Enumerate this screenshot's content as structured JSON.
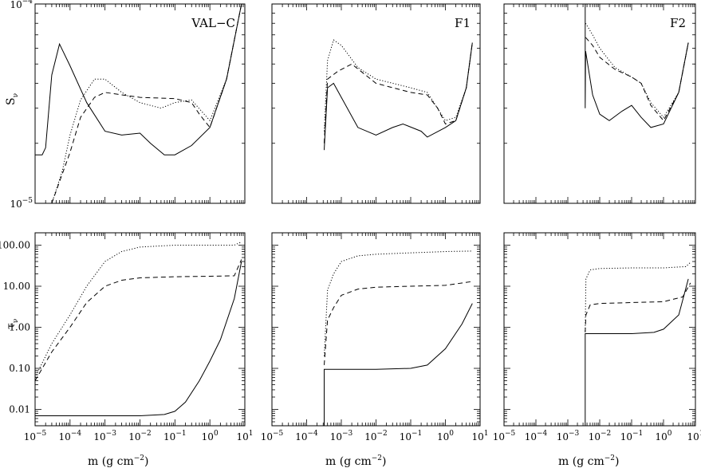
{
  "figure": {
    "xlabel_text": "m  (g  cm",
    "xlabel_exp": "−2",
    "xlabel_close": ")"
  },
  "chart_data": [
    {
      "type": "line",
      "panel": "VAL-C",
      "quantity": "S_nu",
      "ylabel": "S",
      "ylabel_sub": "ν",
      "xscale": "log",
      "yscale": "log",
      "xlim": [
        1e-05,
        10
      ],
      "ylim": [
        1e-05,
        0.0001
      ],
      "xtick_labels": [],
      "ytick_labels": [
        "10^-4",
        "10^-5"
      ],
      "label": "VAL−C",
      "series": [
        {
          "style": "solid",
          "points": [
            [
              1e-05,
              1.75e-05
            ],
            [
              1.6e-05,
              1.75e-05
            ],
            [
              2e-05,
              1.9e-05
            ],
            [
              3e-05,
              4.4e-05
            ],
            [
              5e-05,
              6.3e-05
            ],
            [
              0.0001,
              4.9e-05
            ],
            [
              0.0003,
              3.2e-05
            ],
            [
              0.001,
              2.3e-05
            ],
            [
              0.003,
              2.2e-05
            ],
            [
              0.01,
              2.25e-05
            ],
            [
              0.02,
              2e-05
            ],
            [
              0.05,
              1.75e-05
            ],
            [
              0.1,
              1.75e-05
            ],
            [
              0.3,
              1.95e-05
            ],
            [
              1,
              2.4e-05
            ],
            [
              3,
              4.2e-05
            ],
            [
              8,
              0.0001
            ]
          ]
        },
        {
          "style": "dotted",
          "points": [
            [
              3e-05,
              1e-05
            ],
            [
              6e-05,
              1.45e-05
            ],
            [
              0.0001,
              2.2e-05
            ],
            [
              0.0002,
              3.3e-05
            ],
            [
              0.0005,
              4.2e-05
            ],
            [
              0.001,
              4.2e-05
            ],
            [
              0.003,
              3.6e-05
            ],
            [
              0.01,
              3.2e-05
            ],
            [
              0.04,
              3e-05
            ],
            [
              0.1,
              3.2e-05
            ],
            [
              0.3,
              3.3e-05
            ],
            [
              1,
              2.6e-05
            ],
            [
              3,
              4.2e-05
            ],
            [
              8,
              0.0001
            ]
          ]
        },
        {
          "style": "dashed",
          "points": [
            [
              3e-05,
              1e-05
            ],
            [
              0.0001,
              1.8e-05
            ],
            [
              0.0002,
              2.7e-05
            ],
            [
              0.0005,
              3.4e-05
            ],
            [
              0.001,
              3.6e-05
            ],
            [
              0.003,
              3.5e-05
            ],
            [
              0.01,
              3.4e-05
            ],
            [
              0.1,
              3.35e-05
            ],
            [
              0.3,
              3.2e-05
            ],
            [
              0.5,
              2.8e-05
            ],
            [
              1,
              2.4e-05
            ],
            [
              3,
              4.2e-05
            ],
            [
              8,
              0.0001
            ]
          ]
        }
      ]
    },
    {
      "type": "line",
      "panel": "F1",
      "quantity": "S_nu",
      "xscale": "log",
      "yscale": "log",
      "xlim": [
        1e-05,
        10
      ],
      "ylim": [
        1e-05,
        0.0001
      ],
      "label": "F1",
      "series": [
        {
          "style": "solid",
          "points": [
            [
              0.00032,
              1.85e-05
            ],
            [
              0.0004,
              3.8e-05
            ],
            [
              0.0006,
              4e-05
            ],
            [
              0.001,
              3.4e-05
            ],
            [
              0.003,
              2.4e-05
            ],
            [
              0.01,
              2.2e-05
            ],
            [
              0.03,
              2.4e-05
            ],
            [
              0.06,
              2.5e-05
            ],
            [
              0.2,
              2.3e-05
            ],
            [
              0.3,
              2.15e-05
            ],
            [
              1,
              2.4e-05
            ],
            [
              2,
              2.6e-05
            ],
            [
              4,
              3.8e-05
            ],
            [
              6,
              6.4e-05
            ]
          ]
        },
        {
          "style": "dotted",
          "points": [
            [
              0.00032,
              2.3e-05
            ],
            [
              0.0004,
              5.2e-05
            ],
            [
              0.0006,
              6.6e-05
            ],
            [
              0.001,
              6.2e-05
            ],
            [
              0.003,
              4.8e-05
            ],
            [
              0.01,
              4.2e-05
            ],
            [
              0.1,
              3.8e-05
            ],
            [
              0.3,
              3.6e-05
            ],
            [
              1,
              2.6e-05
            ],
            [
              2,
              2.7e-05
            ],
            [
              4,
              3.8e-05
            ],
            [
              6,
              6.4e-05
            ]
          ]
        },
        {
          "style": "dashed",
          "points": [
            [
              0.00032,
              2e-05
            ],
            [
              0.0004,
              4.2e-05
            ],
            [
              0.0008,
              4.6e-05
            ],
            [
              0.002,
              5e-05
            ],
            [
              0.01,
              4e-05
            ],
            [
              0.1,
              3.6e-05
            ],
            [
              0.3,
              3.5e-05
            ],
            [
              0.6,
              3e-05
            ],
            [
              1,
              2.5e-05
            ],
            [
              2,
              2.6e-05
            ],
            [
              4,
              3.8e-05
            ],
            [
              6,
              6.4e-05
            ]
          ]
        }
      ]
    },
    {
      "type": "line",
      "panel": "F2",
      "quantity": "S_nu",
      "xscale": "log",
      "yscale": "log",
      "xlim": [
        1e-05,
        10
      ],
      "ylim": [
        1e-05,
        0.0001
      ],
      "label": "F2",
      "series": [
        {
          "style": "solid",
          "points": [
            [
              0.0035,
              0.0001
            ],
            [
              0.0035,
              3e-05
            ],
            [
              0.0036,
              5.8e-05
            ],
            [
              0.006,
              3.5e-05
            ],
            [
              0.01,
              2.8e-05
            ],
            [
              0.02,
              2.6e-05
            ],
            [
              0.05,
              2.9e-05
            ],
            [
              0.1,
              3.1e-05
            ],
            [
              0.2,
              2.7e-05
            ],
            [
              0.4,
              2.4e-05
            ],
            [
              1,
              2.5e-05
            ],
            [
              3,
              3.6e-05
            ],
            [
              6,
              6.4e-05
            ]
          ]
        },
        {
          "style": "dotted",
          "points": [
            [
              0.0036,
              8e-05
            ],
            [
              0.006,
              7e-05
            ],
            [
              0.01,
              6e-05
            ],
            [
              0.03,
              4.8e-05
            ],
            [
              0.1,
              4.3e-05
            ],
            [
              0.2,
              4e-05
            ],
            [
              0.4,
              3.2e-05
            ],
            [
              1,
              2.7e-05
            ],
            [
              3,
              3.6e-05
            ],
            [
              6,
              6.4e-05
            ]
          ]
        },
        {
          "style": "dashed",
          "points": [
            [
              0.0036,
              6.8e-05
            ],
            [
              0.006,
              6.2e-05
            ],
            [
              0.01,
              5.4e-05
            ],
            [
              0.03,
              4.7e-05
            ],
            [
              0.1,
              4.3e-05
            ],
            [
              0.2,
              4e-05
            ],
            [
              0.4,
              3.1e-05
            ],
            [
              1,
              2.6e-05
            ],
            [
              3,
              3.6e-05
            ],
            [
              6,
              6.4e-05
            ]
          ]
        }
      ]
    },
    {
      "type": "line",
      "panel": "VAL-C",
      "quantity": "tau_nu",
      "ylabel": "τ",
      "ylabel_sub": "ν",
      "xscale": "log",
      "yscale": "log",
      "xlim": [
        1e-05,
        10
      ],
      "ylim": [
        0.004,
        200
      ],
      "xlabel": "m (g cm^-2)",
      "xtick_labels": [
        "10^-5",
        "10^-4",
        "10^-3",
        "10^-2",
        "10^-1",
        "10^0",
        "10^1"
      ],
      "ytick_labels": [
        "100.00",
        "10.00",
        "1.00",
        "0.10",
        "0.01"
      ],
      "series": [
        {
          "style": "solid",
          "points": [
            [
              1e-05,
              0.007
            ],
            [
              0.01,
              0.007
            ],
            [
              0.05,
              0.0075
            ],
            [
              0.1,
              0.009
            ],
            [
              0.2,
              0.015
            ],
            [
              0.5,
              0.05
            ],
            [
              1,
              0.15
            ],
            [
              2,
              0.5
            ],
            [
              5,
              5
            ],
            [
              8,
              40
            ]
          ]
        },
        {
          "style": "dotted",
          "points": [
            [
              1e-05,
              0.06
            ],
            [
              3e-05,
              0.4
            ],
            [
              0.0001,
              2
            ],
            [
              0.0003,
              10
            ],
            [
              0.001,
              40
            ],
            [
              0.003,
              70
            ],
            [
              0.01,
              90
            ],
            [
              0.1,
              100
            ],
            [
              1,
              100
            ],
            [
              5,
              100
            ],
            [
              8,
              120
            ]
          ]
        },
        {
          "style": "dashed",
          "points": [
            [
              1e-05,
              0.05
            ],
            [
              3e-05,
              0.25
            ],
            [
              0.0001,
              1
            ],
            [
              0.0003,
              4
            ],
            [
              0.001,
              10
            ],
            [
              0.003,
              14
            ],
            [
              0.01,
              16
            ],
            [
              0.1,
              17
            ],
            [
              1,
              17.5
            ],
            [
              5,
              18
            ],
            [
              8,
              45
            ]
          ]
        }
      ]
    },
    {
      "type": "line",
      "panel": "F1",
      "quantity": "tau_nu",
      "xscale": "log",
      "yscale": "log",
      "xlim": [
        1e-05,
        10
      ],
      "ylim": [
        0.004,
        200
      ],
      "xlabel": "m (g cm^-2)",
      "xtick_labels": [
        "10^-5",
        "10^-4",
        "10^-3",
        "10^-2",
        "10^-1",
        "10^0",
        "10^1"
      ],
      "series": [
        {
          "style": "solid",
          "points": [
            [
              0.00032,
              0.004
            ],
            [
              0.00032,
              0.095
            ],
            [
              0.01,
              0.095
            ],
            [
              0.1,
              0.1
            ],
            [
              0.3,
              0.12
            ],
            [
              1,
              0.3
            ],
            [
              3,
              1.2
            ],
            [
              6,
              3.8
            ]
          ]
        },
        {
          "style": "dotted",
          "points": [
            [
              0.00032,
              0.2
            ],
            [
              0.0004,
              8
            ],
            [
              0.0006,
              20
            ],
            [
              0.001,
              40
            ],
            [
              0.003,
              55
            ],
            [
              0.01,
              60
            ],
            [
              0.1,
              65
            ],
            [
              1,
              70
            ],
            [
              6,
              72
            ]
          ]
        },
        {
          "style": "dashed",
          "points": [
            [
              0.00032,
              0.12
            ],
            [
              0.0004,
              1.5
            ],
            [
              0.0006,
              3
            ],
            [
              0.001,
              6
            ],
            [
              0.003,
              8.5
            ],
            [
              0.01,
              9.5
            ],
            [
              0.1,
              10
            ],
            [
              1,
              10.5
            ],
            [
              6,
              13
            ]
          ]
        }
      ]
    },
    {
      "type": "line",
      "panel": "F2",
      "quantity": "tau_nu",
      "xscale": "log",
      "yscale": "log",
      "xlim": [
        1e-05,
        10
      ],
      "ylim": [
        0.004,
        200
      ],
      "xlabel": "m (g cm^-2)",
      "xtick_labels": [
        "10^-5",
        "10^-4",
        "10^-3",
        "10^-2",
        "10^-1",
        "10^0",
        "10^1"
      ],
      "series": [
        {
          "style": "solid",
          "points": [
            [
              0.0035,
              0.004
            ],
            [
              0.0035,
              0.7
            ],
            [
              0.01,
              0.7
            ],
            [
              0.1,
              0.7
            ],
            [
              0.5,
              0.75
            ],
            [
              1,
              0.9
            ],
            [
              3,
              2
            ],
            [
              6,
              15
            ]
          ]
        },
        {
          "style": "dotted",
          "points": [
            [
              0.0035,
              0.8
            ],
            [
              0.0037,
              15
            ],
            [
              0.005,
              25
            ],
            [
              0.01,
              27
            ],
            [
              0.1,
              28
            ],
            [
              1,
              28
            ],
            [
              5,
              30
            ],
            [
              7,
              38
            ]
          ]
        },
        {
          "style": "dashed",
          "points": [
            [
              0.0035,
              0.75
            ],
            [
              0.0037,
              2
            ],
            [
              0.005,
              3.5
            ],
            [
              0.01,
              3.8
            ],
            [
              0.1,
              4
            ],
            [
              1,
              4.2
            ],
            [
              4,
              5.5
            ],
            [
              7,
              12
            ]
          ]
        }
      ]
    }
  ]
}
